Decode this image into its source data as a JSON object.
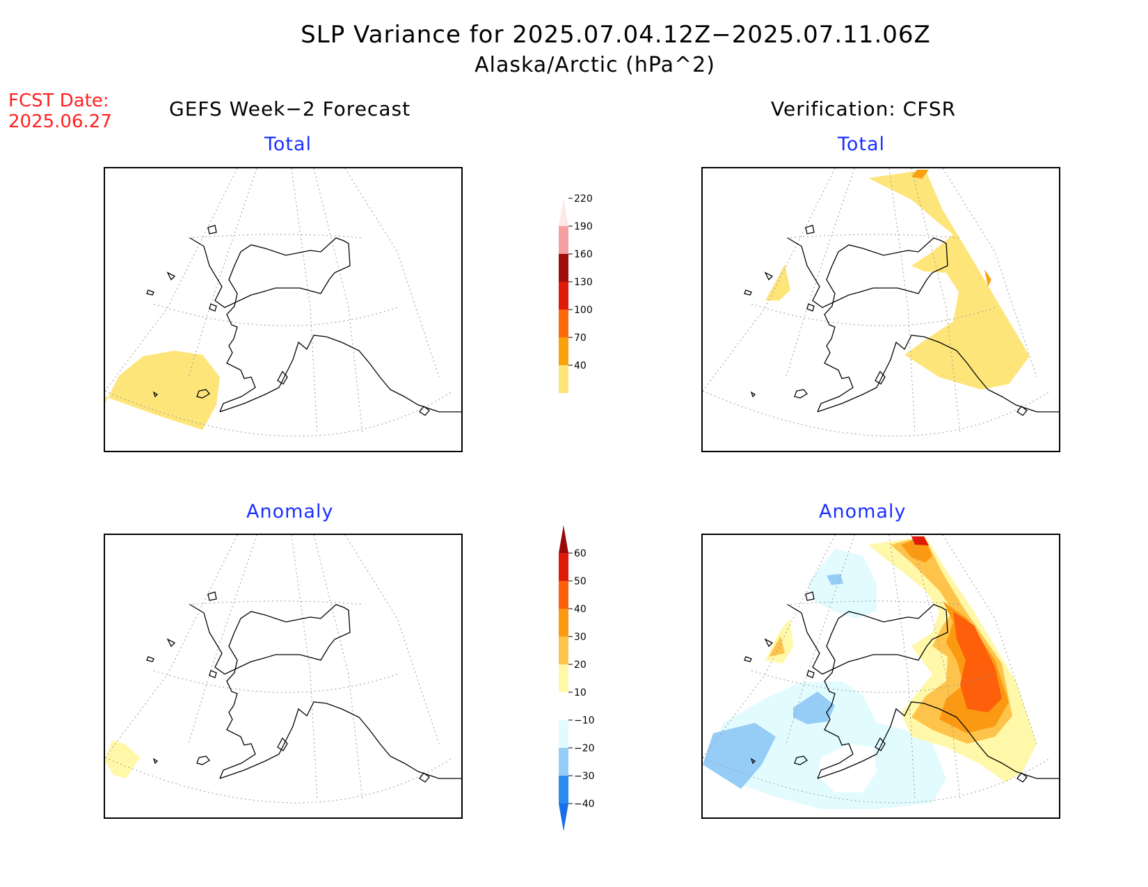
{
  "title": "SLP Variance for 2025.07.04.12Z−2025.07.11.06Z",
  "subtitle": "Alaska/Arctic (hPa^2)",
  "fcst_date_label": "FCST Date:",
  "fcst_date_value": "2025.06.27",
  "left_column_title": "GEFS Week−2 Forecast",
  "right_column_title": "Verification: CFSR",
  "panels": {
    "forecast_total": "Total",
    "forecast_anomaly": "Anomaly",
    "verification_total": "Total",
    "verification_anomaly": "Anomaly"
  },
  "total_colorbar": {
    "levels": [
      "40",
      "70",
      "100",
      "130",
      "160",
      "190",
      "220"
    ],
    "colors": [
      "#fde57a",
      "#fba10e",
      "#fd6a0a",
      "#e01a0a",
      "#a00d0d",
      "#f4a0a0",
      "#fde8e8"
    ]
  },
  "anomaly_colorbar": {
    "levels": [
      "−40",
      "−30",
      "−20",
      "−10",
      "10",
      "20",
      "30",
      "40",
      "50",
      "60"
    ],
    "colors": [
      "#1670e8",
      "#2b8cf0",
      "#96cdf7",
      "#e2fbff",
      "#ffffff",
      "#fff8a8",
      "#fec34a",
      "#fb9a12",
      "#fd5f0a",
      "#e01a0a",
      "#9a0a0a"
    ]
  }
}
